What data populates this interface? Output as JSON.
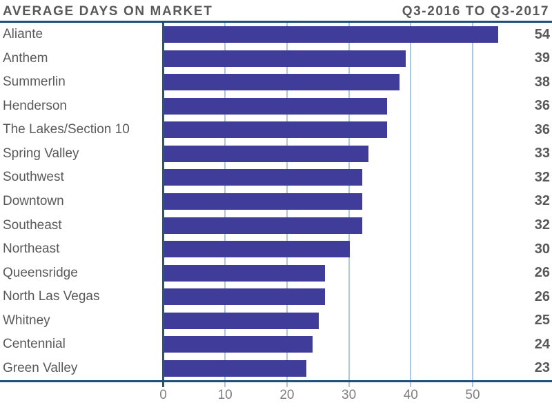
{
  "header": {
    "title": "AVERAGE DAYS ON MARKET",
    "period": "Q3-2016 TO Q3-2017"
  },
  "chart_data": {
    "type": "bar",
    "orientation": "horizontal",
    "title": "AVERAGE DAYS ON MARKET",
    "subtitle": "Q3-2016 TO Q3-2017",
    "categories": [
      "Aliante",
      "Anthem",
      "Summerlin",
      "Henderson",
      "The Lakes/Section 10",
      "Spring Valley",
      "Southwest",
      "Downtown",
      "Southeast",
      "Northeast",
      "Queensridge",
      "North Las Vegas",
      "Whitney",
      "Centennial",
      "Green Valley"
    ],
    "values": [
      54,
      39,
      38,
      36,
      36,
      33,
      32,
      32,
      32,
      30,
      26,
      26,
      25,
      24,
      23
    ],
    "xlabel": "",
    "ylabel": "",
    "xlim": [
      0,
      60
    ],
    "xticks": [
      0,
      10,
      20,
      30,
      40,
      50
    ],
    "grid": true,
    "legend": "none",
    "data_labels": "end-of-row-right",
    "colors": {
      "bar": "#3f3d99",
      "rule": "#1f4e79",
      "axis_line": "#1e5a80",
      "gridline": "#aec7e0",
      "title_text": "#595959",
      "category_text": "#595959",
      "value_text": "#595959",
      "tick_text": "#7f7f7f",
      "background": "#ffffff"
    }
  }
}
